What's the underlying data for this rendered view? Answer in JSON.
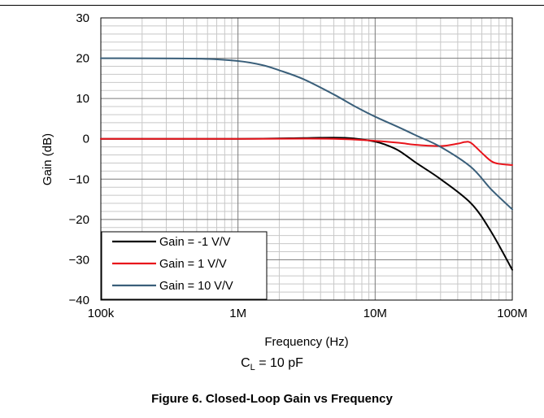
{
  "chart_data": {
    "type": "line",
    "xlabel": "Frequency (Hz)",
    "ylabel": "Gain (dB)",
    "xscale": "log",
    "xlim": [
      100000,
      100000000
    ],
    "ylim": [
      -40,
      30
    ],
    "x_ticks": [
      {
        "value": 100000,
        "label": "100k"
      },
      {
        "value": 1000000,
        "label": "1M"
      },
      {
        "value": 10000000,
        "label": "10M"
      },
      {
        "value": 100000000,
        "label": "100M"
      }
    ],
    "y_ticks": [
      30,
      20,
      10,
      0,
      -10,
      -20,
      -30,
      -40
    ],
    "y_tick_labels": [
      "30",
      "20",
      "10",
      "0",
      "−10",
      "−20",
      "−30",
      "−40"
    ],
    "grid": true,
    "legend_position": "bottom-left",
    "series": [
      {
        "name": "Gain = -1 V/V",
        "color": "#000000",
        "points": [
          [
            100000,
            0
          ],
          [
            1000000,
            0
          ],
          [
            3000000,
            0.2
          ],
          [
            5000000,
            0.3
          ],
          [
            7000000,
            0.1
          ],
          [
            10000000,
            -0.7
          ],
          [
            12000000,
            -1.5
          ],
          [
            15000000,
            -3
          ],
          [
            20000000,
            -6
          ],
          [
            30000000,
            -10
          ],
          [
            50000000,
            -16
          ],
          [
            70000000,
            -23
          ],
          [
            100000000,
            -32.5
          ]
        ]
      },
      {
        "name": "Gain = 1 V/V",
        "color": "#e8141b",
        "points": [
          [
            100000,
            0
          ],
          [
            1000000,
            0
          ],
          [
            5000000,
            0
          ],
          [
            10000000,
            -0.5
          ],
          [
            15000000,
            -1
          ],
          [
            20000000,
            -1.5
          ],
          [
            30000000,
            -1.8
          ],
          [
            40000000,
            -1.2
          ],
          [
            45000000,
            -0.8
          ],
          [
            50000000,
            -1
          ],
          [
            60000000,
            -3.5
          ],
          [
            70000000,
            -5.5
          ],
          [
            80000000,
            -6.2
          ],
          [
            100000000,
            -6.5
          ]
        ]
      },
      {
        "name": "Gain = 10 V/V",
        "color": "#3a5f7a",
        "points": [
          [
            100000,
            20
          ],
          [
            500000,
            19.9
          ],
          [
            1000000,
            19.3
          ],
          [
            1500000,
            18.3
          ],
          [
            2000000,
            17
          ],
          [
            3000000,
            14.8
          ],
          [
            5000000,
            11
          ],
          [
            7000000,
            8.2
          ],
          [
            10000000,
            5.5
          ],
          [
            15000000,
            2.8
          ],
          [
            20000000,
            0.8
          ],
          [
            30000000,
            -2
          ],
          [
            50000000,
            -7
          ],
          [
            70000000,
            -12.5
          ],
          [
            100000000,
            -17.5
          ]
        ]
      }
    ]
  },
  "condition": {
    "prefix": "C",
    "subscript": "L",
    "suffix": " = 10 pF"
  },
  "caption": "Figure 6. Closed-Loop Gain vs Frequency"
}
